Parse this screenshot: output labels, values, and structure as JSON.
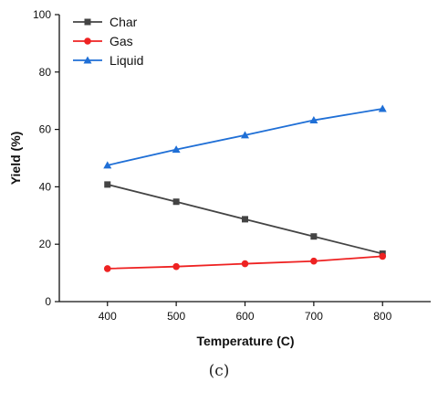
{
  "chart_data": {
    "type": "line",
    "x": [
      400,
      500,
      600,
      700,
      800
    ],
    "series": [
      {
        "name": "Char",
        "values": [
          40.8,
          34.8,
          28.7,
          22.7,
          16.7
        ],
        "color": "#444444",
        "marker": "square"
      },
      {
        "name": "Gas",
        "values": [
          11.5,
          12.2,
          13.2,
          14.1,
          15.8
        ],
        "color": "#ee2222",
        "marker": "circle"
      },
      {
        "name": "Liquid",
        "values": [
          47.5,
          53.0,
          58.0,
          63.2,
          67.2
        ],
        "color": "#1f6fd6",
        "marker": "triangle"
      }
    ],
    "xlabel": "Temperature (C)",
    "ylabel": "Yield (%)",
    "xlim": [
      330,
      870
    ],
    "ylim": [
      0,
      100
    ],
    "xticks": [
      400,
      500,
      600,
      700,
      800
    ],
    "yticks": [
      0,
      20,
      40,
      60,
      80,
      100
    ],
    "grid": false,
    "legend_position": "top-left"
  },
  "caption": "(c)"
}
